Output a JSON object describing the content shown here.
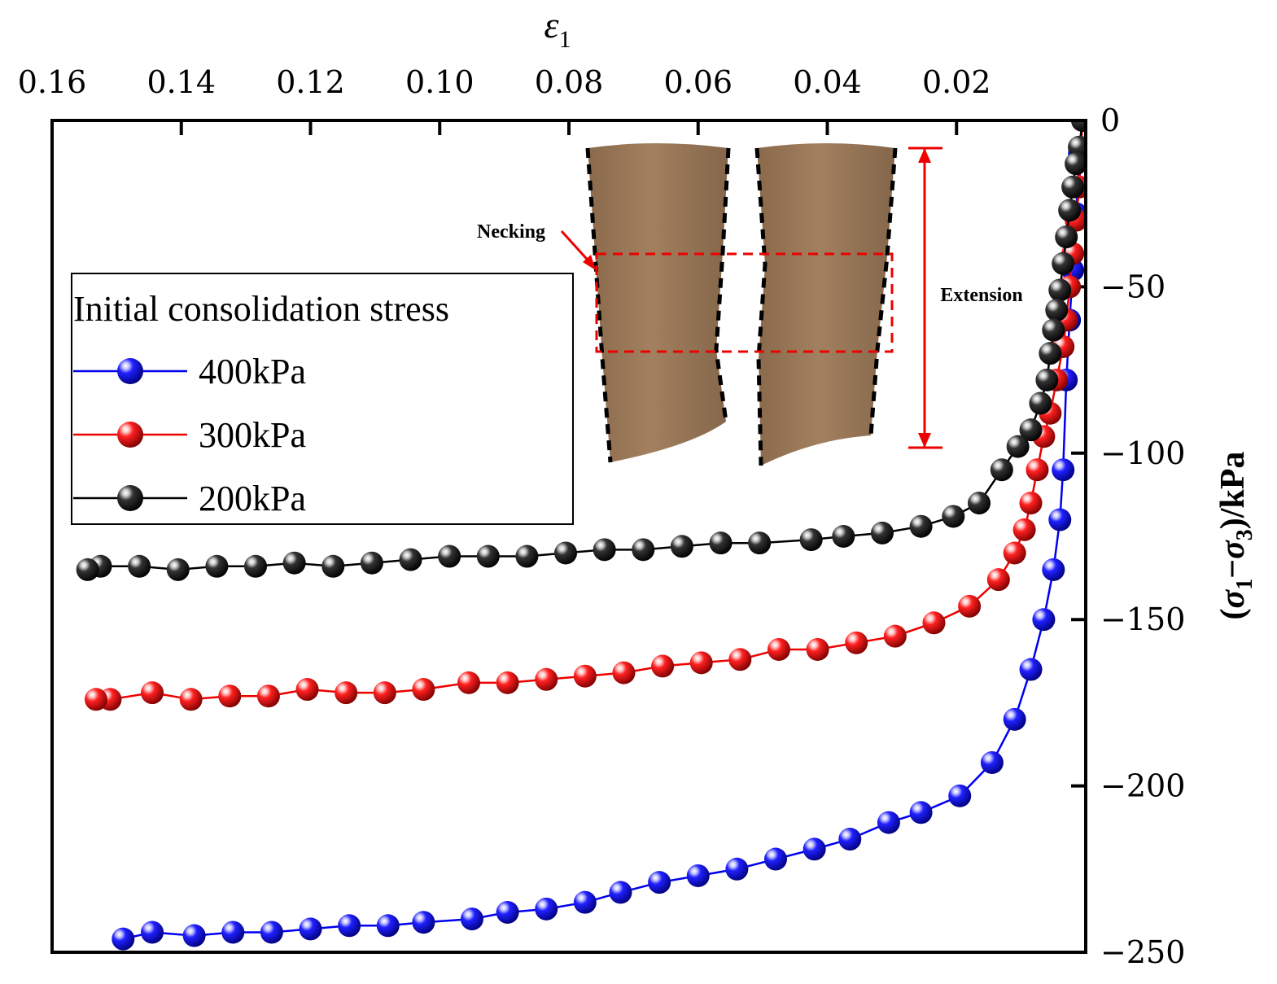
{
  "chart_data": {
    "type": "line",
    "title": "",
    "xlabel": "ε",
    "xlabel_sub": "1",
    "ylabel_open": "(",
    "ylabel_s1": "σ",
    "ylabel_sub1": "1",
    "ylabel_minus": "−",
    "ylabel_s3": "σ",
    "ylabel_sub3": "3",
    "ylabel_close": ")/kPa",
    "x_axis_position": "top",
    "x_reversed": true,
    "y_axis_position": "right",
    "xlim": [
      0.0,
      0.16
    ],
    "ylim": [
      -250,
      0
    ],
    "x_ticks": [
      0.16,
      0.14,
      0.12,
      0.1,
      0.08,
      0.06,
      0.04,
      0.02
    ],
    "x_tick_labels": [
      "0.16",
      "0.14",
      "0.12",
      "0.10",
      "0.08",
      "0.06",
      "0.04",
      "0.02"
    ],
    "y_ticks": [
      0,
      -50,
      -100,
      -150,
      -200,
      -250
    ],
    "y_tick_labels": [
      "0",
      "−50",
      "−100",
      "−150",
      "−200",
      "−250"
    ],
    "legend": {
      "title": "Initial consolidation stress",
      "position": "left",
      "entries": [
        "400kPa",
        "300kPa",
        "200kPa"
      ]
    },
    "series": [
      {
        "name": "400kPa",
        "color": "#0000ee",
        "x": [
          0.0005,
          0.001,
          0.0015,
          0.002,
          0.0025,
          0.003,
          0.0035,
          0.004,
          0.005,
          0.0065,
          0.0085,
          0.011,
          0.0145,
          0.0195,
          0.0255,
          0.0305,
          0.0365,
          0.042,
          0.048,
          0.054,
          0.06,
          0.066,
          0.072,
          0.0775,
          0.0835,
          0.0895,
          0.095,
          0.1025,
          0.108,
          0.114,
          0.12,
          0.126,
          0.132,
          0.138,
          0.1445,
          0.149
        ],
        "y": [
          0,
          -10,
          -28,
          -45,
          -60,
          -78,
          -105,
          -120,
          -135,
          -150,
          -165,
          -180,
          -193,
          -203,
          -208,
          -211,
          -216,
          -219,
          -222,
          -225,
          -227,
          -229,
          -232,
          -235,
          -237,
          -238,
          -240,
          -241,
          -242,
          -242,
          -243,
          -244,
          -244,
          -245,
          -244,
          -246
        ]
      },
      {
        "name": "300kPa",
        "color": "#ee0000",
        "x": [
          0.0005,
          0.001,
          0.0015,
          0.002,
          0.0025,
          0.003,
          0.0035,
          0.0045,
          0.0055,
          0.0065,
          0.0075,
          0.0085,
          0.0095,
          0.011,
          0.0135,
          0.018,
          0.0235,
          0.0295,
          0.0355,
          0.0415,
          0.0475,
          0.0535,
          0.0595,
          0.0655,
          0.0715,
          0.0775,
          0.0835,
          0.0895,
          0.0955,
          0.1025,
          0.1085,
          0.1145,
          0.1205,
          0.1265,
          0.1325,
          0.1385,
          0.1445,
          0.151,
          0.1532
        ],
        "y": [
          0,
          -20,
          -30,
          -40,
          -50,
          -60,
          -68,
          -78,
          -88,
          -95,
          -105,
          -115,
          -123,
          -130,
          -138,
          -146,
          -151,
          -155,
          -157,
          -159,
          -159,
          -162,
          -163,
          -164,
          -166,
          -167,
          -168,
          -169,
          -169,
          -171,
          -172,
          -172,
          -171,
          -173,
          -173,
          -174,
          -172,
          -174,
          -174
        ]
      },
      {
        "name": "200kPa",
        "color": "#000000",
        "x": [
          0.0005,
          0.001,
          0.0015,
          0.002,
          0.0025,
          0.003,
          0.0035,
          0.004,
          0.0045,
          0.005,
          0.0055,
          0.006,
          0.007,
          0.0085,
          0.0105,
          0.013,
          0.0165,
          0.0205,
          0.0255,
          0.0315,
          0.0375,
          0.0425,
          0.0505,
          0.0565,
          0.0625,
          0.0685,
          0.0745,
          0.0805,
          0.0865,
          0.0925,
          0.0985,
          0.1045,
          0.1105,
          0.1165,
          0.1225,
          0.1285,
          0.1345,
          0.1405,
          0.1465,
          0.1525,
          0.1545
        ],
        "y": [
          0,
          -8,
          -13,
          -20,
          -27,
          -35,
          -43,
          -51,
          -57,
          -63,
          -70,
          -78,
          -85,
          -93,
          -98,
          -105,
          -115,
          -119,
          -122,
          -124,
          -125,
          -126,
          -127,
          -127,
          -128,
          -129,
          -129,
          -130,
          -131,
          -131,
          -131,
          -132,
          -133,
          -134,
          -133,
          -134,
          -134,
          -135,
          -134,
          -134,
          -135
        ]
      }
    ]
  },
  "inset": {
    "necking_label": "Necking",
    "extension_label": "Extension"
  }
}
